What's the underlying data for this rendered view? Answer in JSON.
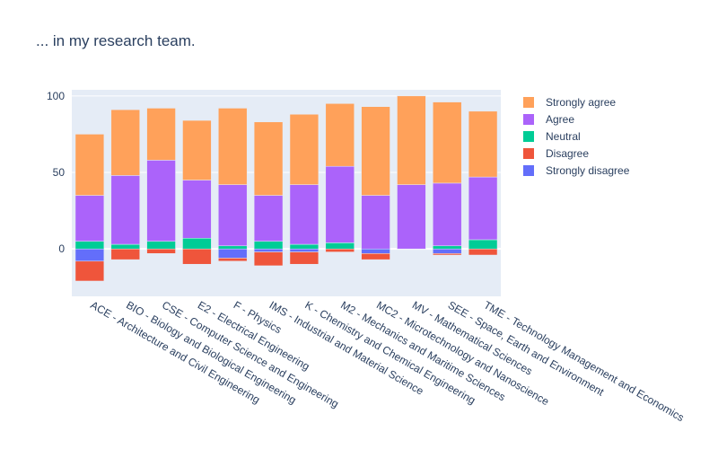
{
  "chart_data": {
    "type": "bar",
    "barmode": "relative",
    "title": "... in my research team.",
    "categories": [
      "ACE - Architecture and Civil Engineering",
      "BIO - Biology and Biological Engineering",
      "CSE - Computer Science and Engineering",
      "E2 - Electrical Engineering",
      "F - Physics",
      "IMS - Industrial and Material Science",
      "K - Chemistry and Chemical Engineering",
      "M2 - Mechanics and Maritime Sciences",
      "MC2 - Microtechnology and Nanoscience",
      "MV - Mathematical Sciences",
      "SEE - Space, Earth and Environment",
      "TME - Technology Management and Economics"
    ],
    "series": [
      {
        "name": "Strongly disagree",
        "color": "#636efa",
        "values": [
          -8,
          0,
          0,
          0,
          -6,
          -2,
          -2,
          0,
          -3,
          0,
          -3,
          0
        ]
      },
      {
        "name": "Disagree",
        "color": "#ef553b",
        "values": [
          -13,
          -7,
          -3,
          -10,
          -2,
          -9,
          -8,
          -2,
          -4,
          0,
          -1,
          -4
        ]
      },
      {
        "name": "Neutral",
        "color": "#00cc96",
        "values": [
          5,
          3,
          5,
          7,
          2,
          5,
          3,
          4,
          0,
          0,
          2,
          6
        ]
      },
      {
        "name": "Agree",
        "color": "#ab63fa",
        "values": [
          30,
          45,
          53,
          38,
          40,
          30,
          39,
          50,
          35,
          42,
          41,
          41
        ]
      },
      {
        "name": "Strongly agree",
        "color": "#ffa15a",
        "values": [
          40,
          43,
          34,
          39,
          50,
          48,
          46,
          41,
          58,
          58,
          53,
          43
        ]
      }
    ],
    "legend_order": [
      "Strongly agree",
      "Agree",
      "Neutral",
      "Disagree",
      "Strongly disagree"
    ],
    "yticks": [
      0,
      50,
      100
    ],
    "ylim": [
      -31,
      104
    ],
    "grid": true,
    "legend_position": "right"
  }
}
